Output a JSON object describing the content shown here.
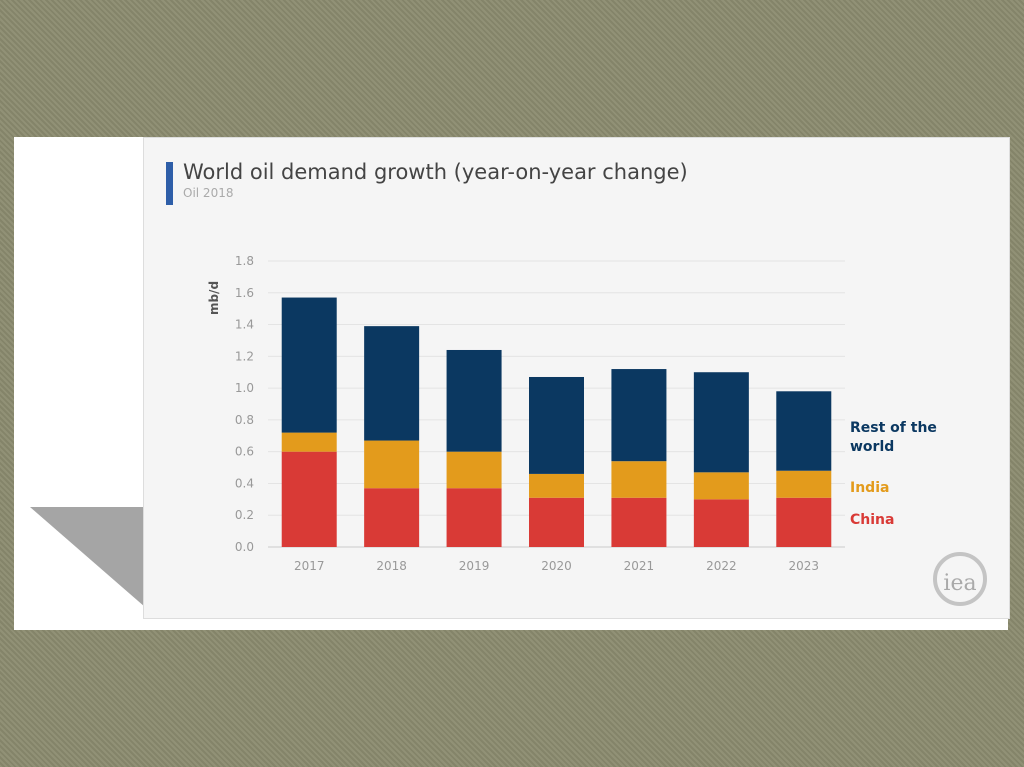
{
  "chart_data": {
    "type": "bar",
    "stacked": true,
    "title": "World oil demand growth (year-on-year change)",
    "subtitle": "Oil 2018",
    "xlabel": "",
    "ylabel": "mb/d",
    "ylim": [
      0,
      1.8
    ],
    "yticks": [
      "0.0",
      "0.2",
      "0.4",
      "0.6",
      "0.8",
      "1.0",
      "1.2",
      "1.4",
      "1.6",
      "1.8"
    ],
    "grid": true,
    "legend_position": "right",
    "categories": [
      "2017",
      "2018",
      "2019",
      "2020",
      "2021",
      "2022",
      "2023"
    ],
    "series": [
      {
        "name": "China",
        "color": "#d93a36",
        "values": [
          0.6,
          0.37,
          0.37,
          0.31,
          0.31,
          0.3,
          0.31
        ]
      },
      {
        "name": "India",
        "color": "#e39b1c",
        "values": [
          0.12,
          0.3,
          0.23,
          0.15,
          0.23,
          0.17,
          0.17
        ]
      },
      {
        "name": "Rest of the world",
        "color": "#0b3861",
        "values": [
          0.85,
          0.72,
          0.64,
          0.61,
          0.58,
          0.63,
          0.5
        ]
      }
    ],
    "legend_lines": {
      "rest": [
        "Rest of the",
        "world"
      ],
      "india": "India",
      "china": "China"
    }
  },
  "logo_text": "iea"
}
